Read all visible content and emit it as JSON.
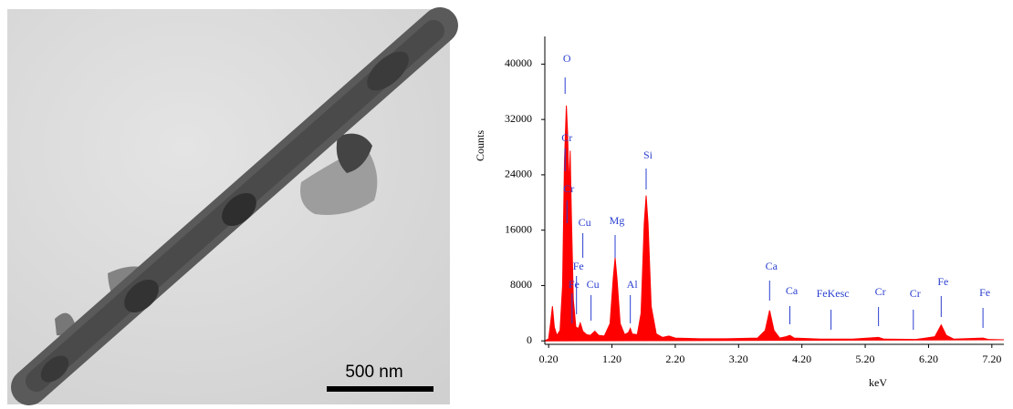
{
  "scale_bar": "500 nm",
  "chart_data": {
    "type": "area",
    "xlabel": "keV",
    "ylabel": "Counts",
    "color": "#ff0000",
    "annotation_color": "#2a3fd0",
    "xlim": [
      0.14,
      7.39
    ],
    "ylim": [
      -500,
      44000
    ],
    "xticks": [
      {
        "value": 0.2,
        "label": "0.20"
      },
      {
        "value": 1.2,
        "label": "1.20"
      },
      {
        "value": 2.2,
        "label": "2.20"
      },
      {
        "value": 3.2,
        "label": "3.20"
      },
      {
        "value": 4.2,
        "label": "4.20"
      },
      {
        "value": 5.2,
        "label": "5.20"
      },
      {
        "value": 6.2,
        "label": "6.20"
      },
      {
        "value": 7.2,
        "label": "7.20"
      }
    ],
    "yticks": [
      0,
      8000,
      16000,
      24000,
      32000,
      40000
    ],
    "x": [
      0.14,
      0.2,
      0.23,
      0.26,
      0.29,
      0.33,
      0.38,
      0.42,
      0.45,
      0.48,
      0.5,
      0.52,
      0.54,
      0.56,
      0.59,
      0.63,
      0.67,
      0.7,
      0.74,
      0.8,
      0.86,
      0.93,
      0.99,
      1.08,
      1.17,
      1.22,
      1.25,
      1.28,
      1.33,
      1.4,
      1.46,
      1.49,
      1.52,
      1.6,
      1.66,
      1.71,
      1.74,
      1.77,
      1.82,
      1.9,
      2.0,
      2.1,
      2.2,
      2.6,
      3.0,
      3.5,
      3.62,
      3.69,
      3.76,
      3.85,
      3.95,
      4.01,
      4.08,
      4.5,
      5.0,
      5.41,
      5.5,
      6.0,
      6.3,
      6.4,
      6.48,
      6.6,
      7.06,
      7.15,
      7.39
    ],
    "values": [
      0,
      300,
      2500,
      5000,
      2000,
      800,
      1500,
      8000,
      26000,
      34000,
      30000,
      22000,
      27500,
      18000,
      6000,
      2000,
      1800,
      2600,
      1400,
      900,
      800,
      1400,
      800,
      700,
      2500,
      9000,
      12000,
      9000,
      2500,
      900,
      1200,
      1800,
      1000,
      900,
      4000,
      17000,
      21000,
      17000,
      5000,
      1000,
      500,
      700,
      400,
      300,
      300,
      400,
      1500,
      4400,
      1500,
      400,
      600,
      800,
      400,
      250,
      250,
      500,
      250,
      200,
      600,
      2300,
      800,
      250,
      400,
      200,
      150
    ],
    "annotations": [
      {
        "label": "O",
        "x": 0.46
      },
      {
        "label": "Cr",
        "x": 0.46
      },
      {
        "label": "Cr",
        "x": 0.49
      },
      {
        "label": "Cu",
        "x": 0.74
      },
      {
        "label": "Fe",
        "x": 0.64
      },
      {
        "label": "Fe",
        "x": 0.57
      },
      {
        "label": "Cu",
        "x": 0.87
      },
      {
        "label": "Mg",
        "x": 1.25
      },
      {
        "label": "Al",
        "x": 1.49
      },
      {
        "label": "Si",
        "x": 1.74
      },
      {
        "label": "Ca",
        "x": 3.69
      },
      {
        "label": "Ca",
        "x": 4.01
      },
      {
        "label": "FeKesc",
        "x": 4.66
      },
      {
        "label": "Cr",
        "x": 5.41
      },
      {
        "label": "Cr",
        "x": 5.96
      },
      {
        "label": "Fe",
        "x": 6.4
      },
      {
        "label": "Fe",
        "x": 7.06
      }
    ]
  }
}
